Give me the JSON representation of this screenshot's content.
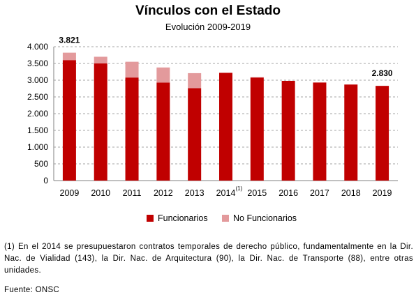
{
  "chart_data": {
    "type": "bar",
    "stacked": true,
    "title": "Vínculos con el Estado",
    "subtitle": "Evolución 2009-2019",
    "categories": [
      "2009",
      "2010",
      "2011",
      "2012",
      "2013",
      "2014",
      "2015",
      "2016",
      "2017",
      "2018",
      "2019"
    ],
    "category_superscripts": {
      "2014": "(1)"
    },
    "series": [
      {
        "name": "Funcionarios",
        "color": "#c00000",
        "values": [
          3600,
          3500,
          3080,
          2930,
          2760,
          3220,
          3080,
          2980,
          2930,
          2870,
          2830
        ]
      },
      {
        "name": "No Funcionarios",
        "color": "#e39a9c",
        "values": [
          221,
          200,
          470,
          450,
          450,
          0,
          10,
          0,
          0,
          0,
          0
        ]
      }
    ],
    "data_labels": [
      {
        "category": "2009",
        "text": "3.821"
      },
      {
        "category": "2019",
        "text": "2.830"
      }
    ],
    "ylim": [
      0,
      4000
    ],
    "yticks": [
      0,
      500,
      1000,
      1500,
      2000,
      2500,
      3000,
      3500,
      4000
    ],
    "ytick_labels": [
      "0",
      "500",
      "1.000",
      "1.500",
      "2.000",
      "2.500",
      "3.000",
      "3.500",
      "4.000"
    ],
    "grid": "dashed-horizontal",
    "legend_position": "bottom"
  },
  "footnote": "(1) En el 2014 se presupuestaron contratos temporales de derecho público, fundamentalmente en la Dir. Nac. de Vialidad (143), la Dir. Nac. de Arquitectura (90), la Dir. Nac. de Transporte (88), entre otras unidades.",
  "source": "Fuente: ONSC"
}
